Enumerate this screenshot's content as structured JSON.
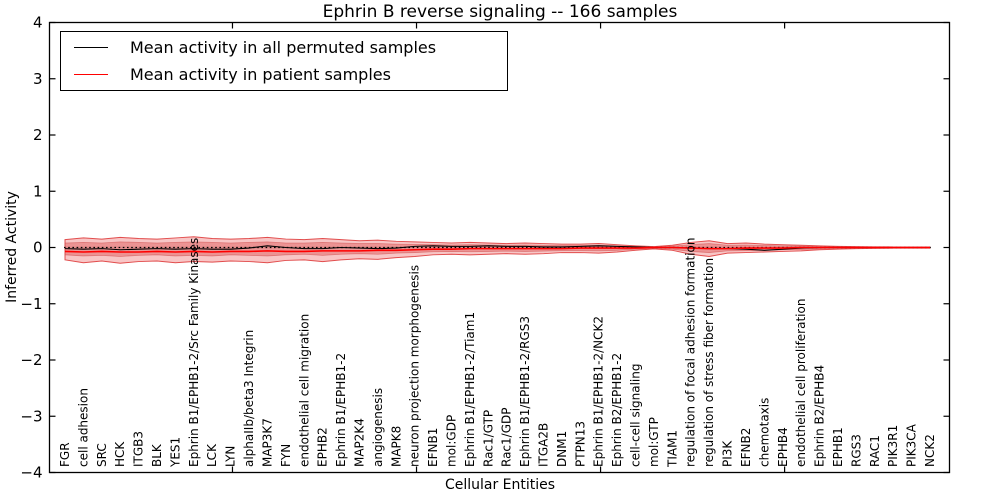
{
  "figure": {
    "title": "Ephrin B reverse signaling -- 166 samples",
    "xlabel": "Cellular Entities",
    "ylabel": "Inferred Activity"
  },
  "legend": {
    "entries": [
      {
        "label": "Mean activity in all permuted samples",
        "color": "#000000"
      },
      {
        "label": "Mean activity in patient samples",
        "color": "#ff0000"
      }
    ]
  },
  "chart_data": {
    "type": "line",
    "title": "Ephrin B reverse signaling -- 166 samples",
    "xlabel": "Cellular Entities",
    "ylabel": "Inferred Activity",
    "ylim": [
      -4,
      4
    ],
    "yticks": [
      4,
      3,
      2,
      1,
      0,
      -1,
      -2,
      -3,
      -4
    ],
    "xticks": [
      10,
      20,
      30,
      40
    ],
    "grid": false,
    "legend_position": "upper left",
    "categories": [
      "FGR",
      "cell adhesion",
      "SRC",
      "HCK",
      "ITGB3",
      "BLK",
      "YES1",
      "Ephrin B1/EPHB1-2/Src Family Kinases",
      "LCK",
      "LYN",
      "alphaIIb/beta3 Integrin",
      "MAP3K7",
      "FYN",
      "endothelial cell migration",
      "EPHB2",
      "Ephrin B1/EPHB1-2",
      "MAP2K4",
      "angiogenesis",
      "MAPK8",
      "neuron projection morphogenesis",
      "EFNB1",
      "mol:GDP",
      "Ephrin B1/EPHB1-2/Tiam1",
      "Rac1/GTP",
      "Rac1/GDP",
      "Ephrin B1/EPHB1-2/RGS3",
      "ITGA2B",
      "DNM1",
      "PTPN13",
      "Ephrin B1/EPHB1-2/NCK2",
      "Ephrin B2/EPHB1-2",
      "cell-cell signaling",
      "mol:GTP",
      "TIAM1",
      "regulation of focal adhesion formation",
      "regulation of stress fiber formation",
      "PI3K",
      "EFNB2",
      "chemotaxis",
      "EPHB4",
      "endothelial cell proliferation",
      "Ephrin B2/EPHB4",
      "EPHB1",
      "RGS3",
      "RAC1",
      "PIK3R1",
      "PIK3CA",
      "NCK2"
    ],
    "series": [
      {
        "name": "Mean activity in all permuted samples",
        "color": "#000000",
        "values": [
          -0.02,
          -0.03,
          -0.02,
          -0.04,
          -0.03,
          -0.02,
          -0.03,
          -0.02,
          -0.03,
          -0.03,
          -0.01,
          0.03,
          0.0,
          -0.02,
          -0.02,
          0.0,
          -0.01,
          -0.02,
          -0.01,
          0.02,
          0.03,
          0.02,
          0.02,
          0.03,
          0.02,
          0.02,
          0.01,
          0.01,
          0.02,
          0.03,
          0.02,
          0.01,
          0.0,
          0.0,
          -0.01,
          -0.02,
          -0.02,
          -0.03,
          -0.05,
          -0.03,
          -0.01,
          0.0,
          0.0,
          0.0,
          0.0,
          0.0,
          0.0,
          0.0
        ]
      },
      {
        "name": "Mean activity in patient samples",
        "color": "#ff0000",
        "values": [
          -0.07,
          -0.08,
          -0.07,
          -0.08,
          -0.08,
          -0.07,
          -0.08,
          -0.07,
          -0.08,
          -0.07,
          -0.07,
          -0.06,
          -0.07,
          -0.07,
          -0.06,
          -0.06,
          -0.06,
          -0.05,
          -0.05,
          -0.04,
          -0.03,
          -0.03,
          -0.02,
          -0.02,
          -0.02,
          -0.02,
          -0.02,
          -0.02,
          -0.01,
          -0.01,
          -0.01,
          -0.01,
          0.0,
          0.0,
          -0.01,
          -0.02,
          -0.02,
          -0.01,
          -0.01,
          -0.01,
          0.0,
          0.0,
          0.0,
          0.0,
          0.0,
          0.0,
          0.0,
          0.0
        ]
      }
    ],
    "zero_line": {
      "value": 0,
      "style": "dotted",
      "color": "#000000"
    },
    "patient_band_outer": {
      "fill": "#f08080",
      "edge": "#dd3333",
      "opacity": 0.45,
      "top": [
        0.14,
        0.17,
        0.15,
        0.18,
        0.16,
        0.15,
        0.17,
        0.19,
        0.16,
        0.15,
        0.16,
        0.18,
        0.15,
        0.14,
        0.16,
        0.14,
        0.12,
        0.13,
        0.11,
        0.1,
        0.09,
        0.08,
        0.09,
        0.08,
        0.07,
        0.08,
        0.07,
        0.06,
        0.06,
        0.07,
        0.05,
        0.03,
        0.015,
        0.04,
        0.09,
        0.12,
        0.07,
        0.08,
        0.06,
        0.05,
        0.04,
        0.03,
        0.02,
        0.015,
        0.012,
        0.01,
        0.01,
        0.01
      ],
      "bottom": [
        -0.22,
        -0.27,
        -0.24,
        -0.28,
        -0.25,
        -0.24,
        -0.27,
        -0.25,
        -0.26,
        -0.24,
        -0.25,
        -0.27,
        -0.23,
        -0.22,
        -0.25,
        -0.22,
        -0.2,
        -0.21,
        -0.18,
        -0.16,
        -0.13,
        -0.12,
        -0.13,
        -0.12,
        -0.11,
        -0.12,
        -0.11,
        -0.09,
        -0.09,
        -0.1,
        -0.08,
        -0.05,
        -0.025,
        -0.05,
        -0.12,
        -0.16,
        -0.1,
        -0.09,
        -0.08,
        -0.07,
        -0.06,
        -0.04,
        -0.03,
        -0.02,
        -0.015,
        -0.012,
        -0.01,
        -0.01
      ]
    },
    "patient_band_inner": {
      "fill": "#e06060",
      "edge": "#cc4444",
      "opacity": 0.5,
      "top": [
        0.08,
        0.09,
        0.08,
        0.1,
        0.09,
        0.08,
        0.09,
        0.1,
        0.09,
        0.08,
        0.09,
        0.1,
        0.08,
        0.08,
        0.09,
        0.08,
        0.07,
        0.07,
        0.06,
        0.055,
        0.05,
        0.045,
        0.05,
        0.045,
        0.04,
        0.045,
        0.04,
        0.035,
        0.035,
        0.04,
        0.03,
        0.02,
        0.01,
        0.025,
        0.05,
        0.07,
        0.04,
        0.045,
        0.035,
        0.03,
        0.025,
        0.018,
        0.012,
        0.01,
        0.008,
        0.006,
        0.006,
        0.006
      ],
      "bottom": [
        -0.13,
        -0.15,
        -0.14,
        -0.16,
        -0.14,
        -0.13,
        -0.15,
        -0.14,
        -0.15,
        -0.13,
        -0.14,
        -0.15,
        -0.13,
        -0.12,
        -0.14,
        -0.12,
        -0.11,
        -0.12,
        -0.1,
        -0.09,
        -0.075,
        -0.07,
        -0.075,
        -0.07,
        -0.065,
        -0.07,
        -0.065,
        -0.055,
        -0.055,
        -0.06,
        -0.05,
        -0.03,
        -0.015,
        -0.03,
        -0.07,
        -0.09,
        -0.06,
        -0.055,
        -0.05,
        -0.04,
        -0.035,
        -0.025,
        -0.018,
        -0.013,
        -0.01,
        -0.008,
        -0.007,
        -0.007
      ]
    },
    "permuted_band": {
      "fill": "#999999",
      "opacity": 0.35,
      "halfwidth": 0.018
    }
  }
}
